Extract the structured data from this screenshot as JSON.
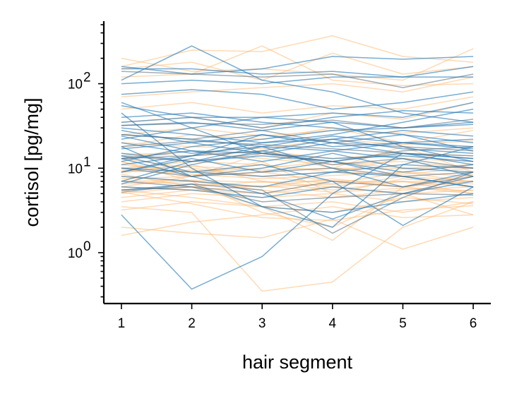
{
  "chart_data": {
    "type": "line",
    "xlabel": "hair segment",
    "ylabel": "cortisol [pg/mg]",
    "x": [
      1,
      2,
      3,
      4,
      5,
      6
    ],
    "xticks": [
      "1",
      "2",
      "3",
      "4",
      "5",
      "6"
    ],
    "xlim": [
      0.75,
      6.25
    ],
    "yscale": "log",
    "ylim": [
      0.25,
      550
    ],
    "yticks": [
      {
        "base": "10",
        "exp": "0",
        "value": 1
      },
      {
        "base": "10",
        "exp": "1",
        "value": 10
      },
      {
        "base": "10",
        "exp": "2",
        "value": 100
      }
    ],
    "grid": false,
    "legend": "none",
    "groups": [
      {
        "color": "#ffbb78",
        "opacity": 0.55,
        "series": [
          {
            "values": [
              200,
              140,
              150,
              130,
              110,
              260
            ]
          },
          {
            "values": [
              160,
              250,
              240,
              370,
              210,
              180
            ]
          },
          {
            "values": [
              120,
              130,
              280,
              110,
              95,
              100
            ]
          },
          {
            "values": [
              150,
              180,
              110,
              230,
              130,
              160
            ]
          },
          {
            "values": [
              35,
              40,
              30,
              45,
              38,
              60
            ]
          },
          {
            "values": [
              18,
              25,
              22,
              30,
              20,
              28
            ]
          },
          {
            "values": [
              12,
              8,
              15,
              10,
              18,
              9
            ]
          },
          {
            "values": [
              9,
              9.5,
              8,
              9,
              8.5,
              10
            ]
          },
          {
            "values": [
              8,
              7,
              6,
              7.5,
              6,
              7
            ]
          },
          {
            "values": [
              7,
              6.5,
              6,
              6.5,
              7,
              6
            ]
          },
          {
            "values": [
              6,
              5.5,
              5,
              6,
              5,
              5.5
            ]
          },
          {
            "values": [
              10,
              12,
              11,
              9,
              13,
              12
            ]
          },
          {
            "values": [
              11,
              9,
              10,
              12,
              10,
              11
            ]
          },
          {
            "values": [
              5,
              6,
              7,
              6,
              8,
              7
            ]
          },
          {
            "values": [
              4,
              5,
              4.5,
              5,
              4,
              4.5
            ]
          },
          {
            "values": [
              3.2,
              4,
              3.5,
              3,
              4.5,
              3.8
            ]
          },
          {
            "values": [
              2,
              1.7,
              1.5,
              2.5,
              1.1,
              2
            ]
          },
          {
            "values": [
              1.6,
              2.3,
              2.8,
              3.5,
              2.6,
              2.8
            ]
          },
          {
            "values": [
              15,
              14,
              16,
              13,
              15,
              14
            ]
          },
          {
            "values": [
              20,
              18,
              17,
              22,
              19,
              21
            ]
          },
          {
            "values": [
              25,
              30,
              24,
              28,
              26,
              30
            ]
          },
          {
            "values": [
              13,
              10,
              8,
              6.5,
              9,
              8
            ]
          },
          {
            "values": [
              9,
              11,
              7,
              5.5,
              7,
              5
            ]
          },
          {
            "values": [
              7.5,
              8,
              9,
              7,
              6,
              8.5
            ]
          },
          {
            "values": [
              6.5,
              7,
              5.5,
              4.5,
              5.5,
              6
            ]
          },
          {
            "values": [
              5.5,
              4.5,
              3.5,
              4,
              3,
              4
            ]
          },
          {
            "values": [
              8.5,
              6,
              3.5,
              1.4,
              6,
              5
            ]
          },
          {
            "values": [
              3.5,
              3,
              0.35,
              0.45,
              2,
              4
            ]
          },
          {
            "values": [
              12,
              7,
              3,
              2,
              5,
              2.8
            ]
          },
          {
            "values": [
              6,
              8,
              12,
              5,
              7.5,
              6.5
            ]
          },
          {
            "values": [
              50,
              60,
              45,
              55,
              50,
              70
            ]
          },
          {
            "values": [
              70,
              80,
              90,
              100,
              80,
              120
            ]
          },
          {
            "values": [
              10,
              10.5,
              9.5,
              10,
              9.8,
              10.2
            ]
          },
          {
            "values": [
              7,
              7.2,
              6.8,
              7.1,
              6.9,
              7
            ]
          },
          {
            "values": [
              14,
              16,
              13,
              11,
              12,
              10
            ]
          },
          {
            "values": [
              9.5,
              8.5,
              7.5,
              8.2,
              9,
              6.8
            ]
          },
          {
            "values": [
              4.5,
              5.5,
              6.2,
              5.2,
              5.8,
              5.4
            ]
          },
          {
            "values": [
              5.2,
              3.8,
              2.6,
              2.4,
              3.2,
              3.6
            ]
          }
        ]
      },
      {
        "color": "#1f77b4",
        "opacity": 0.6,
        "series": [
          {
            "values": [
              2.8,
              0.37,
              0.9,
              5,
              15,
              13
            ]
          },
          {
            "values": [
              45,
              10,
              3.5,
              2,
              11,
              18
            ]
          },
          {
            "values": [
              110,
              280,
              110,
              80,
              45,
              35
            ]
          },
          {
            "values": [
              150,
              150,
              130,
              140,
              120,
              160
            ]
          },
          {
            "values": [
              160,
              130,
              150,
              210,
              195,
              210
            ]
          },
          {
            "values": [
              100,
              110,
              100,
              120,
              120,
              120
            ]
          },
          {
            "values": [
              75,
              85,
              75,
              50,
              60,
              80
            ]
          },
          {
            "values": [
              55,
              40,
              40,
              45,
              40,
              60
            ]
          },
          {
            "values": [
              32,
              35,
              28,
              35,
              30,
              33
            ]
          },
          {
            "values": [
              25,
              22,
              18,
              24,
              20,
              22
            ]
          },
          {
            "values": [
              20,
              15,
              18,
              16,
              20,
              18
            ]
          },
          {
            "values": [
              15,
              12,
              14,
              12,
              15,
              13
            ]
          },
          {
            "values": [
              13,
              8,
              10,
              15,
              10,
              9
            ]
          },
          {
            "values": [
              10,
              9,
              8,
              9,
              11,
              10
            ]
          },
          {
            "values": [
              8,
              7,
              6,
              9,
              8,
              6
            ]
          },
          {
            "values": [
              6,
              5.5,
              4.5,
              6,
              5,
              7
            ]
          },
          {
            "values": [
              5.5,
              6.5,
              3.5,
              3,
              4,
              5
            ]
          },
          {
            "values": [
              17,
              20,
              25,
              18,
              20,
              17
            ]
          },
          {
            "values": [
              30,
              25,
              20,
              22,
              28,
              24
            ]
          },
          {
            "values": [
              40,
              45,
              35,
              30,
              25,
              20
            ]
          },
          {
            "values": [
              12,
              18,
              22,
              28,
              30,
              35
            ]
          },
          {
            "values": [
              9,
              14,
              20,
              25,
              35,
              50
            ]
          },
          {
            "values": [
              60,
              30,
              15,
              12,
              8,
              6
            ]
          },
          {
            "values": [
              22,
              30,
              40,
              35,
              18,
              12
            ]
          },
          {
            "values": [
              18,
              8,
              5,
              2.5,
              5,
              8
            ]
          },
          {
            "values": [
              7,
              12,
              18,
              10,
              6,
              9
            ]
          },
          {
            "values": [
              14,
              9,
              11,
              7,
              2.1,
              6
            ]
          },
          {
            "values": [
              11,
              14,
              25,
              20,
              15,
              11
            ]
          },
          {
            "values": [
              28,
              20,
              15,
              20,
              25,
              16
            ]
          },
          {
            "values": [
              6.5,
              11,
              16,
              22,
              17,
              15
            ]
          },
          {
            "values": [
              9,
              13,
              9,
              12,
              9,
              11
            ]
          },
          {
            "values": [
              24,
              16,
              12,
              16,
              13,
              8
            ]
          },
          {
            "values": [
              35,
              40,
              30,
              40,
              48,
              45
            ]
          },
          {
            "values": [
              13,
              16,
              15,
              13,
              14,
              12
            ]
          }
        ]
      },
      {
        "color": "#556b7a",
        "opacity": 0.55,
        "series": [
          {
            "values": [
              140,
              130,
              120,
              130,
              90,
              130
            ]
          },
          {
            "values": [
              32,
              34,
              33,
              37,
              30,
              38
            ]
          },
          {
            "values": [
              14,
              12,
              15,
              12,
              16,
              18
            ]
          },
          {
            "values": [
              10,
              8,
              9,
              10,
              8,
              9
            ]
          },
          {
            "values": [
              7,
              6,
              5,
              7,
              6,
              8
            ]
          },
          {
            "values": [
              5.5,
              6,
              4,
              4.5,
              5,
              4.8
            ]
          },
          {
            "values": [
              25,
              22,
              28,
              20,
              18,
              16
            ]
          },
          {
            "values": [
              13,
              14,
              16,
              11,
              13,
              10
            ]
          },
          {
            "values": [
              5.2,
              6.5,
              5.5,
              1.7,
              4.5,
              9
            ]
          },
          {
            "values": [
              18,
              21,
              19,
              17,
              15,
              14
            ]
          }
        ]
      }
    ]
  }
}
